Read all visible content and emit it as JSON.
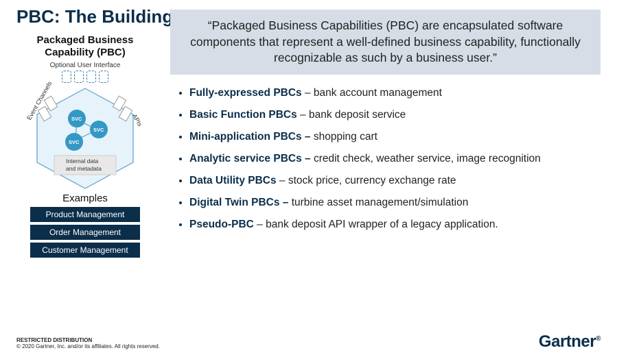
{
  "title": "PBC: The Building Blocks Of The Composable Enterprise",
  "left": {
    "pbc_label_line1": "Packaged Business",
    "pbc_label_line2": "Capability (PBC)",
    "optional_ui": "Optional User Interface",
    "ui_box_count": 4,
    "hexagon": {
      "fill": "#e7f3fa",
      "stroke": "#5aa0c8",
      "edge_left_label": "Event Channels",
      "edge_right_label": "APIs",
      "svc_fill": "#3498c5",
      "svc_label": "SVC",
      "internal_line1": "Internal data",
      "internal_line2": "and metadata",
      "internal_box_fill": "#e8e8e8"
    },
    "examples_label": "Examples",
    "examples": [
      "Product Management",
      "Order Management",
      "Customer Management"
    ]
  },
  "quote": "“Packaged Business Capabilities (PBC) are encapsulated software components that represent a well-defined business capability, functionally recognizable as such by a business user.”",
  "bullets": [
    {
      "bold": "Fully-expressed PBCs",
      "rest": " – bank account management"
    },
    {
      "bold": "Basic Function PBCs",
      "rest": " – bank deposit service"
    },
    {
      "bold": "Mini-application PBCs – ",
      "rest": "shopping cart"
    },
    {
      "bold": "Analytic service PBCs – ",
      "rest": "credit check, weather service, image recognition"
    },
    {
      "bold": "Data Utility PBCs",
      "rest": " – stock price, currency exchange rate"
    },
    {
      "bold": "Digital Twin PBCs – ",
      "rest": "turbine asset management/simulation"
    },
    {
      "bold": "Pseudo-PBC",
      "rest": " – bank deposit API wrapper of a legacy application."
    }
  ],
  "footer": {
    "line1": "RESTRICTED DISTRIBUTION",
    "line2": "© 2020 Gartner, Inc. and/or its affiliates. All rights reserved."
  },
  "logo": "Gartner",
  "colors": {
    "brand_navy": "#0b2e4a",
    "quote_bg": "#d6dde6"
  }
}
